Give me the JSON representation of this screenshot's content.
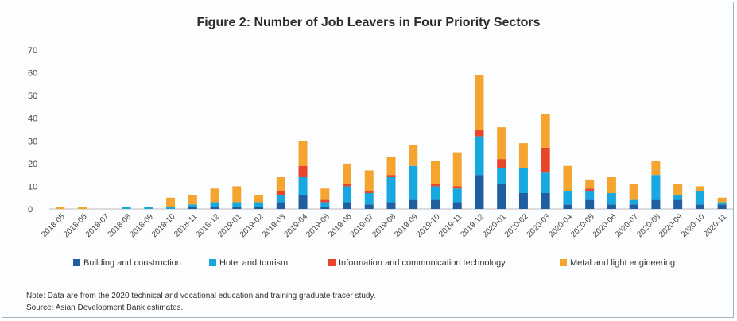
{
  "chart_data": {
    "type": "bar",
    "stacked": true,
    "title": "Figure 2: Number of Job Leavers in Four Priority Sectors",
    "xlabel": "",
    "ylabel": "",
    "ylim": [
      0,
      70
    ],
    "yticks": [
      0,
      10,
      20,
      30,
      40,
      50,
      60,
      70
    ],
    "grid": false,
    "legend_position": "bottom",
    "categories": [
      "2018-05",
      "2018-06",
      "2018-07",
      "2018-08",
      "2018-09",
      "2018-10",
      "2018-11",
      "2018-12",
      "2019-01",
      "2019-02",
      "2019-03",
      "2019-04",
      "2019-05",
      "2019-06",
      "2019-07",
      "2019-08",
      "2019-09",
      "2019-10",
      "2019-11",
      "2019-12",
      "2020-01",
      "2020-02",
      "2020-03",
      "2020-04",
      "2020-05",
      "2020-06",
      "2020-07",
      "2020-08",
      "2020-09",
      "2020-10",
      "2020-11"
    ],
    "series": [
      {
        "name": "Building and construction",
        "color": "#1f5fa0",
        "values": [
          0,
          0,
          0,
          0,
          0,
          0,
          1,
          1,
          1,
          1,
          3,
          6,
          1,
          3,
          2,
          3,
          4,
          4,
          3,
          15,
          11,
          7,
          7,
          2,
          4,
          2,
          2,
          4,
          4,
          2,
          2
        ]
      },
      {
        "name": "Hotel and tourism",
        "color": "#18a8e0",
        "values": [
          0,
          0,
          0,
          1,
          1,
          1,
          1,
          2,
          2,
          2,
          3,
          8,
          2,
          7,
          5,
          11,
          15,
          6,
          6,
          17,
          7,
          11,
          9,
          6,
          4,
          5,
          2,
          11,
          2,
          6,
          1
        ]
      },
      {
        "name": "Information and communication technology",
        "color": "#e8452a",
        "values": [
          0,
          0,
          0,
          0,
          0,
          0,
          0,
          0,
          0,
          0,
          2,
          5,
          1,
          1,
          1,
          1,
          0,
          1,
          1,
          3,
          4,
          0,
          11,
          0,
          1,
          0,
          0,
          0,
          0,
          0,
          0
        ]
      },
      {
        "name": "Metal and light engineering",
        "color": "#f5a430",
        "values": [
          1,
          1,
          0,
          0,
          0,
          4,
          4,
          6,
          7,
          3,
          6,
          11,
          5,
          9,
          9,
          8,
          9,
          10,
          15,
          24,
          14,
          11,
          15,
          11,
          4,
          7,
          7,
          6,
          5,
          2,
          2
        ]
      }
    ]
  },
  "notes": {
    "note": "Note: Data are from the 2020 technical and vocational education and training graduate tracer study.",
    "source": "Source: Asian Development Bank estimates."
  }
}
